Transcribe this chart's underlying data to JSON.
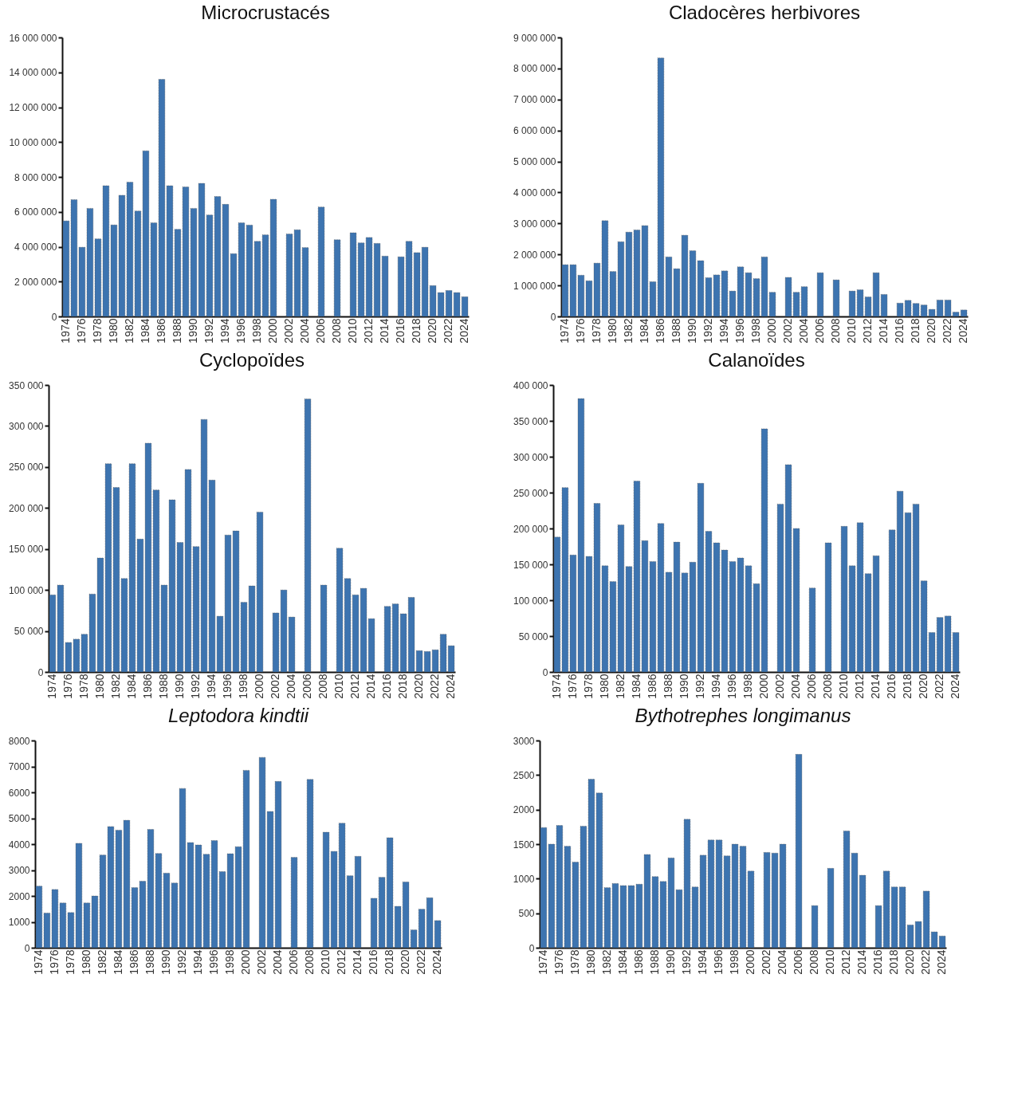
{
  "chart_data": [
    {
      "type": "bar",
      "title": "Microcrustacés",
      "categories": [
        "1974",
        null,
        "1976",
        null,
        "1978",
        null,
        "1980",
        null,
        "1982",
        null,
        "1984",
        null,
        "1986",
        null,
        "1988",
        null,
        "1990",
        null,
        "1992",
        null,
        "1994",
        null,
        "1996",
        null,
        "1998",
        null,
        "2000",
        null,
        "2002",
        null,
        "2004",
        null,
        "2006",
        null,
        "2008",
        null,
        "2010",
        null,
        "2012",
        null,
        "2014",
        null,
        "2016",
        null,
        "2018",
        null,
        "2020",
        null,
        "2022",
        null,
        "2024"
      ],
      "values": [
        5480000,
        6700000,
        3970000,
        6200000,
        4450000,
        7500000,
        5250000,
        6950000,
        7700000,
        6050000,
        9500000,
        5370000,
        13600000,
        7500000,
        5000000,
        7430000,
        6200000,
        7630000,
        5820000,
        6880000,
        6430000,
        3600000,
        5370000,
        5240000,
        4310000,
        4680000,
        6720000,
        null,
        4730000,
        4970000,
        3950000,
        null,
        6280000,
        null,
        4400000,
        null,
        4800000,
        4220000,
        4530000,
        4190000,
        3460000,
        null,
        3420000,
        4310000,
        3660000,
        3970000,
        1770000,
        1370000,
        1490000,
        1370000,
        1130000
      ],
      "color": "#3d74b0",
      "ylim": [
        0,
        16000000
      ],
      "yticks": [
        0,
        2000000,
        4000000,
        6000000,
        8000000,
        10000000,
        12000000,
        14000000,
        16000000
      ]
    },
    {
      "type": "bar",
      "title": "Cladocères herbivores",
      "categories": [
        "1974",
        null,
        "1976",
        null,
        "1978",
        null,
        "1980",
        null,
        "1982",
        null,
        "1984",
        null,
        "1986",
        null,
        "1988",
        null,
        "1990",
        null,
        "1992",
        null,
        "1994",
        null,
        "1996",
        null,
        "1998",
        null,
        "2000",
        null,
        "2002",
        null,
        "2004",
        null,
        "2006",
        null,
        "2008",
        null,
        "2010",
        null,
        "2012",
        null,
        "2014",
        null,
        "2016",
        null,
        "2018",
        null,
        "2020",
        null,
        "2022",
        null,
        "2024"
      ],
      "values": [
        1670000,
        1670000,
        1330000,
        1150000,
        1720000,
        3090000,
        1450000,
        2410000,
        2720000,
        2790000,
        2930000,
        1120000,
        8340000,
        1920000,
        1540000,
        2620000,
        2120000,
        1800000,
        1250000,
        1340000,
        1470000,
        820000,
        1600000,
        1410000,
        1220000,
        1920000,
        780000,
        null,
        1260000,
        780000,
        960000,
        null,
        1410000,
        null,
        1180000,
        null,
        820000,
        860000,
        630000,
        1410000,
        710000,
        null,
        430000,
        520000,
        420000,
        370000,
        230000,
        530000,
        530000,
        140000,
        210000
      ],
      "color": "#3d74b0",
      "ylim": [
        0,
        9000000
      ],
      "yticks": [
        0,
        1000000,
        2000000,
        3000000,
        4000000,
        5000000,
        6000000,
        7000000,
        8000000,
        9000000
      ]
    },
    {
      "type": "bar",
      "title": "Cyclopoïdes",
      "categories": [
        "1974",
        null,
        "1976",
        null,
        "1978",
        null,
        "1980",
        null,
        "1982",
        null,
        "1984",
        null,
        "1986",
        null,
        "1988",
        null,
        "1990",
        null,
        "1992",
        null,
        "1994",
        null,
        "1996",
        null,
        "1998",
        null,
        "2000",
        null,
        "2002",
        null,
        "2004",
        null,
        "2006",
        null,
        "2008",
        null,
        "2010",
        null,
        "2012",
        null,
        "2014",
        null,
        "2016",
        null,
        "2018",
        null,
        "2020",
        null,
        "2022",
        null,
        "2024"
      ],
      "values": [
        94000,
        106000,
        36000,
        40000,
        46000,
        95000,
        139000,
        254000,
        225000,
        114000,
        254000,
        162000,
        279000,
        222000,
        106000,
        210000,
        158000,
        247000,
        153000,
        308000,
        234000,
        68000,
        167000,
        172000,
        85000,
        105000,
        195000,
        null,
        72000,
        100000,
        67000,
        null,
        333000,
        null,
        106000,
        null,
        151000,
        114000,
        94000,
        102000,
        65000,
        null,
        80000,
        83000,
        71000,
        91000,
        26000,
        25000,
        27000,
        46000,
        32000
      ],
      "color": "#3d74b0",
      "ylim": [
        0,
        350000
      ],
      "yticks": [
        0,
        50000,
        100000,
        150000,
        200000,
        250000,
        300000,
        350000
      ]
    },
    {
      "type": "bar",
      "title": "Calanoïdes",
      "categories": [
        "1974",
        null,
        "1976",
        null,
        "1978",
        null,
        "1980",
        null,
        "1982",
        null,
        "1984",
        null,
        "1986",
        null,
        "1988",
        null,
        "1990",
        null,
        "1992",
        null,
        "1994",
        null,
        "1996",
        null,
        "1998",
        null,
        "2000",
        null,
        "2002",
        null,
        "2004",
        null,
        "2006",
        null,
        "2008",
        null,
        "2010",
        null,
        "2012",
        null,
        "2014",
        null,
        "2016",
        null,
        "2018",
        null,
        "2020",
        null,
        "2022",
        null,
        "2024"
      ],
      "values": [
        188000,
        257000,
        163000,
        381000,
        161000,
        235000,
        148000,
        126000,
        205000,
        147000,
        266000,
        183000,
        154000,
        207000,
        139000,
        181000,
        138000,
        153000,
        263000,
        196000,
        180000,
        170000,
        154000,
        159000,
        148000,
        123000,
        339000,
        null,
        234000,
        289000,
        200000,
        null,
        117000,
        null,
        180000,
        null,
        203000,
        148000,
        208000,
        137000,
        162000,
        null,
        198000,
        252000,
        222000,
        234000,
        127000,
        55000,
        76000,
        78000,
        55000
      ],
      "color": "#3d74b0",
      "ylim": [
        0,
        400000
      ],
      "yticks": [
        0,
        50000,
        100000,
        150000,
        200000,
        250000,
        300000,
        350000,
        400000
      ]
    },
    {
      "type": "bar",
      "title": "Leptodora kindtii",
      "categories": [
        "1974",
        null,
        "1976",
        null,
        "1978",
        null,
        "1980",
        null,
        "1982",
        null,
        "1984",
        null,
        "1986",
        null,
        "1988",
        null,
        "1990",
        null,
        "1992",
        null,
        "1994",
        null,
        "1996",
        null,
        "1998",
        null,
        "2000",
        null,
        "2002",
        null,
        "2004",
        null,
        "2006",
        null,
        "2008",
        null,
        "2010",
        null,
        "2012",
        null,
        "2014",
        null,
        "2016",
        null,
        "2018",
        null,
        "2020",
        null,
        "2022",
        null,
        "2024"
      ],
      "values": [
        2380,
        1340,
        2250,
        1730,
        1360,
        4030,
        1730,
        2000,
        3580,
        4680,
        4540,
        4920,
        2320,
        2570,
        4570,
        3640,
        2880,
        2500,
        6150,
        4060,
        3970,
        3610,
        4140,
        2940,
        3630,
        3900,
        6850,
        null,
        7350,
        5260,
        6420,
        null,
        3490,
        null,
        6500,
        null,
        4460,
        3720,
        4810,
        2780,
        3530,
        null,
        1910,
        2720,
        4250,
        1600,
        2540,
        690,
        1490,
        1930,
        1050
      ],
      "color": "#3d74b0",
      "ylim": [
        0,
        8000
      ],
      "yticks": [
        0,
        1000,
        2000,
        3000,
        4000,
        5000,
        6000,
        7000,
        8000
      ]
    },
    {
      "type": "bar",
      "title": "Bythotrephes longimanus",
      "categories": [
        "1974",
        null,
        "1976",
        null,
        "1978",
        null,
        "1980",
        null,
        "1982",
        null,
        "1984",
        null,
        "1986",
        null,
        "1988",
        null,
        "1990",
        null,
        "1992",
        null,
        "1994",
        null,
        "1996",
        null,
        "1998",
        null,
        "2000",
        null,
        "2002",
        null,
        "2004",
        null,
        "2006",
        null,
        "2008",
        null,
        "2010",
        null,
        "2012",
        null,
        "2014",
        null,
        "2016",
        null,
        "2018",
        null,
        "2020",
        null,
        "2022",
        null,
        "2024"
      ],
      "values": [
        1740,
        1500,
        1770,
        1470,
        1240,
        1760,
        2440,
        2240,
        870,
        930,
        900,
        900,
        920,
        1350,
        1030,
        960,
        1300,
        840,
        1860,
        880,
        1340,
        1560,
        1560,
        1330,
        1500,
        1470,
        1110,
        null,
        1380,
        1370,
        1500,
        null,
        2800,
        null,
        610,
        null,
        1150,
        null,
        1690,
        1370,
        1050,
        null,
        610,
        1110,
        880,
        880,
        330,
        380,
        820,
        230,
        170
      ],
      "color": "#3d74b0",
      "ylim": [
        0,
        3000
      ],
      "yticks": [
        0,
        500,
        1000,
        1500,
        2000,
        2500,
        3000
      ]
    }
  ]
}
